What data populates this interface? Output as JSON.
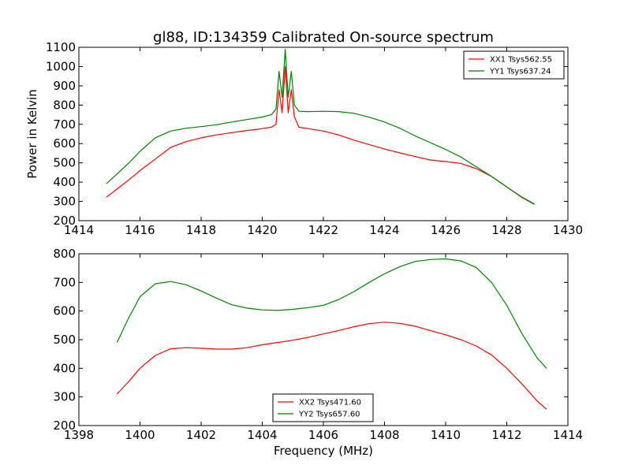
{
  "chart_data": [
    {
      "type": "line",
      "title": "gl88, ID:134359 Calibrated On-source spectrum",
      "xlabel": "",
      "ylabel": "Power in Kelvin",
      "xlim": [
        1414,
        1430
      ],
      "ylim": [
        200,
        1100
      ],
      "xticks": [
        1414,
        1416,
        1418,
        1420,
        1422,
        1424,
        1426,
        1428,
        1430
      ],
      "yticks": [
        200,
        300,
        400,
        500,
        600,
        700,
        800,
        900,
        1000,
        1100
      ],
      "grid": false,
      "legend_placement": "top-right",
      "series": [
        {
          "name": "XX1 Tsys562.55",
          "color": "#ff0000",
          "x": [
            1414.9,
            1415.3,
            1415.7,
            1416.0,
            1416.5,
            1417.0,
            1417.5,
            1418.0,
            1418.5,
            1419.0,
            1419.5,
            1420.0,
            1420.3,
            1420.45,
            1420.55,
            1420.65,
            1420.75,
            1420.85,
            1420.95,
            1421.05,
            1421.2,
            1421.5,
            1422.0,
            1422.5,
            1423.0,
            1423.5,
            1424.0,
            1424.5,
            1425.0,
            1425.5,
            1426.0,
            1426.5,
            1427.0,
            1427.5,
            1428.0,
            1428.5,
            1428.9
          ],
          "y": [
            322,
            370,
            420,
            460,
            520,
            580,
            610,
            630,
            645,
            657,
            668,
            678,
            685,
            700,
            880,
            760,
            1000,
            760,
            880,
            740,
            685,
            678,
            665,
            645,
            618,
            595,
            572,
            552,
            533,
            515,
            507,
            497,
            470,
            430,
            375,
            320,
            285
          ]
        },
        {
          "name": "YY1 Tsys637.24",
          "color": "#008000",
          "x": [
            1414.9,
            1415.3,
            1415.7,
            1416.0,
            1416.5,
            1417.0,
            1417.5,
            1418.0,
            1418.5,
            1419.0,
            1419.5,
            1420.0,
            1420.3,
            1420.45,
            1420.55,
            1420.65,
            1420.75,
            1420.85,
            1420.95,
            1421.05,
            1421.2,
            1421.5,
            1422.0,
            1422.5,
            1423.0,
            1423.5,
            1424.0,
            1424.5,
            1425.0,
            1425.5,
            1426.0,
            1426.5,
            1427.0,
            1427.5,
            1428.0,
            1428.5,
            1428.9
          ],
          "y": [
            392,
            450,
            510,
            560,
            630,
            665,
            680,
            688,
            698,
            712,
            725,
            738,
            750,
            780,
            975,
            840,
            1090,
            840,
            975,
            800,
            768,
            766,
            768,
            766,
            757,
            737,
            712,
            680,
            640,
            605,
            570,
            530,
            480,
            430,
            375,
            322,
            287
          ]
        }
      ]
    },
    {
      "type": "line",
      "title": "",
      "xlabel": "Frequency (MHz)",
      "ylabel": "",
      "xlim": [
        1398,
        1414
      ],
      "ylim": [
        200,
        800
      ],
      "xticks": [
        1398,
        1400,
        1402,
        1404,
        1406,
        1408,
        1410,
        1412,
        1414
      ],
      "yticks": [
        200,
        300,
        400,
        500,
        600,
        700,
        800
      ],
      "grid": false,
      "legend_placement": "lower-center",
      "series": [
        {
          "name": "XX2 Tsys471.60",
          "color": "#ff0000",
          "x": [
            1399.25,
            1399.6,
            1400.0,
            1400.5,
            1401.0,
            1401.5,
            1402.0,
            1402.5,
            1403.0,
            1403.5,
            1404.0,
            1404.5,
            1405.0,
            1405.5,
            1406.0,
            1406.5,
            1407.0,
            1407.5,
            1408.0,
            1408.5,
            1409.0,
            1409.5,
            1410.0,
            1410.5,
            1411.0,
            1411.5,
            1412.0,
            1412.5,
            1413.0,
            1413.3
          ],
          "y": [
            310,
            350,
            400,
            445,
            468,
            472,
            470,
            467,
            467,
            472,
            482,
            490,
            498,
            508,
            520,
            532,
            545,
            556,
            561,
            557,
            547,
            532,
            517,
            500,
            478,
            447,
            400,
            345,
            285,
            257
          ]
        },
        {
          "name": "YY2 Tsys657.60",
          "color": "#008000",
          "x": [
            1399.25,
            1399.6,
            1400.0,
            1400.5,
            1401.0,
            1401.5,
            1402.0,
            1402.5,
            1403.0,
            1403.5,
            1404.0,
            1404.5,
            1405.0,
            1405.5,
            1406.0,
            1406.5,
            1407.0,
            1407.5,
            1408.0,
            1408.5,
            1409.0,
            1409.5,
            1410.0,
            1410.5,
            1411.0,
            1411.5,
            1412.0,
            1412.5,
            1413.0,
            1413.3
          ],
          "y": [
            490,
            570,
            650,
            695,
            703,
            692,
            670,
            645,
            622,
            610,
            604,
            602,
            606,
            612,
            620,
            640,
            668,
            700,
            730,
            755,
            773,
            780,
            782,
            775,
            752,
            700,
            620,
            520,
            435,
            400
          ]
        }
      ]
    }
  ]
}
